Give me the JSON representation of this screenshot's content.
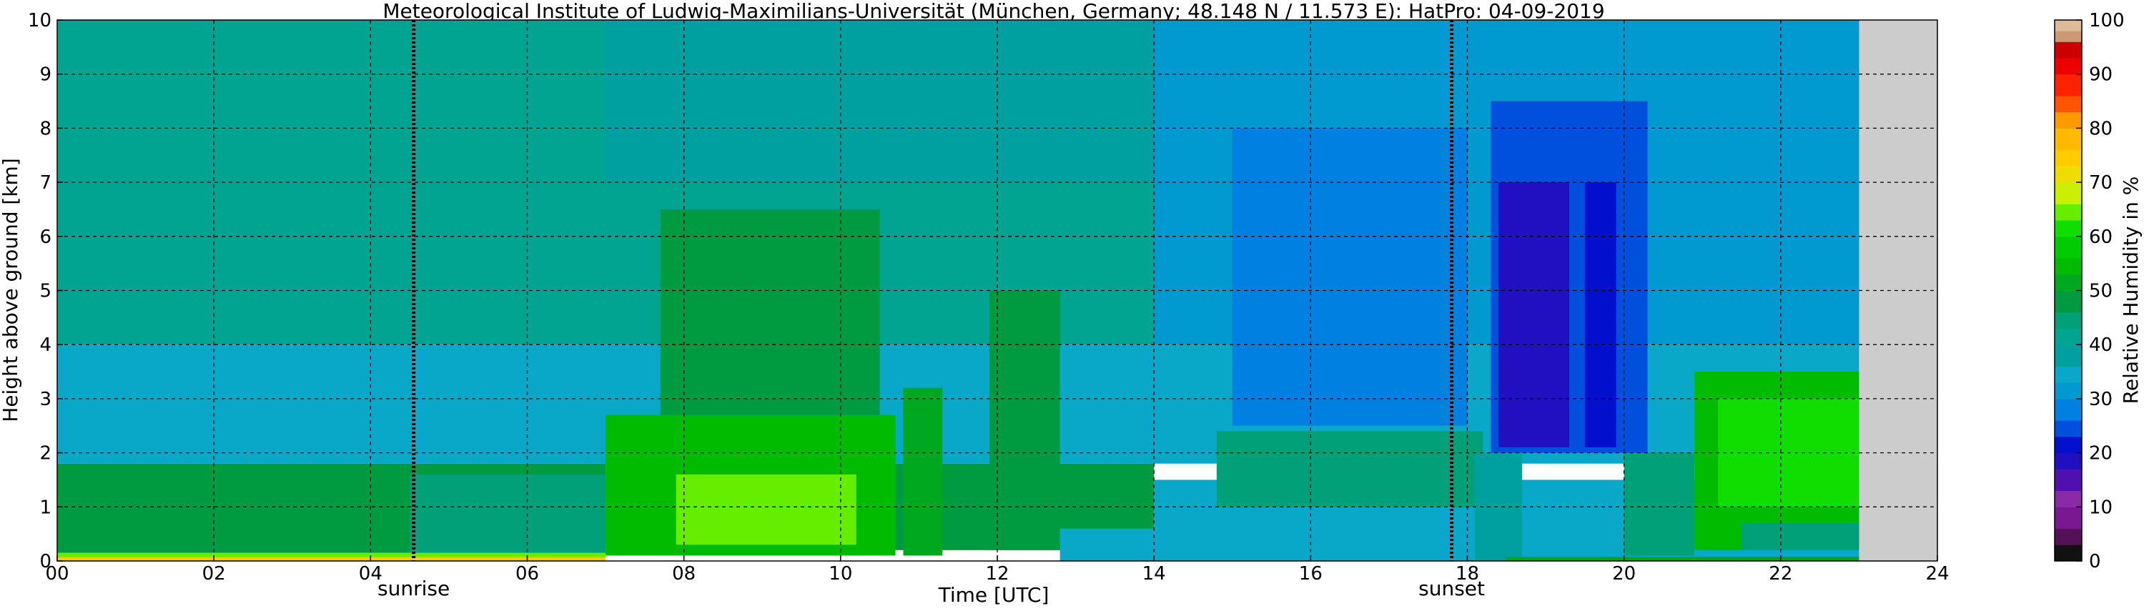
{
  "chart_data": {
    "type": "heatmap",
    "title": "Meteorological Institute of Ludwig-Maximilians-Universität (München, Germany; 48.148 N / 11.573 E):    HatPro: 04-09-2019",
    "xlabel": "Time [UTC]",
    "ylabel": "Height above ground [km]",
    "xlim": [
      0,
      24
    ],
    "ylim": [
      0,
      10
    ],
    "x_ticks": [
      "00",
      "02",
      "04",
      "06",
      "08",
      "10",
      "12",
      "14",
      "16",
      "18",
      "20",
      "22",
      "24"
    ],
    "y_ticks": [
      "0",
      "1",
      "2",
      "3",
      "4",
      "5",
      "6",
      "7",
      "8",
      "9",
      "10"
    ],
    "grid": true,
    "data_end_time": 23.0,
    "missing_color": "#cccccc",
    "events": [
      {
        "label": "sunrise",
        "time": 4.55
      },
      {
        "label": "sunset",
        "time": 17.8
      }
    ],
    "colorbar": {
      "label": "Relative Humidity in %",
      "range": [
        0,
        100
      ],
      "ticks": [
        "0",
        "10",
        "20",
        "30",
        "40",
        "50",
        "60",
        "70",
        "80",
        "90",
        "100"
      ],
      "levels": [
        {
          "from": 0,
          "to": 3,
          "color": "#111111"
        },
        {
          "from": 3,
          "to": 6,
          "color": "#551155"
        },
        {
          "from": 6,
          "to": 10,
          "color": "#7a1890"
        },
        {
          "from": 10,
          "to": 13,
          "color": "#8a2aa6"
        },
        {
          "from": 13,
          "to": 17,
          "color": "#5010b0"
        },
        {
          "from": 17,
          "to": 20,
          "color": "#2010c0"
        },
        {
          "from": 20,
          "to": 23,
          "color": "#0010cc"
        },
        {
          "from": 23,
          "to": 26,
          "color": "#0050dd"
        },
        {
          "from": 26,
          "to": 30,
          "color": "#0080e0"
        },
        {
          "from": 30,
          "to": 33,
          "color": "#0099d0"
        },
        {
          "from": 33,
          "to": 36,
          "color": "#0aa8c8"
        },
        {
          "from": 36,
          "to": 40,
          "color": "#00a0a0"
        },
        {
          "from": 40,
          "to": 43,
          "color": "#00a490"
        },
        {
          "from": 43,
          "to": 46,
          "color": "#00a078"
        },
        {
          "from": 46,
          "to": 50,
          "color": "#009a40"
        },
        {
          "from": 50,
          "to": 53,
          "color": "#00a820"
        },
        {
          "from": 53,
          "to": 56,
          "color": "#00bb00"
        },
        {
          "from": 56,
          "to": 60,
          "color": "#00cc00"
        },
        {
          "from": 60,
          "to": 63,
          "color": "#10dd00"
        },
        {
          "from": 63,
          "to": 66,
          "color": "#66ee00"
        },
        {
          "from": 66,
          "to": 70,
          "color": "#ccee00"
        },
        {
          "from": 70,
          "to": 73,
          "color": "#eedd00"
        },
        {
          "from": 73,
          "to": 76,
          "color": "#ffcc00"
        },
        {
          "from": 76,
          "to": 80,
          "color": "#ffbb00"
        },
        {
          "from": 80,
          "to": 83,
          "color": "#ff9900"
        },
        {
          "from": 83,
          "to": 86,
          "color": "#ff5500"
        },
        {
          "from": 86,
          "to": 90,
          "color": "#ff2200"
        },
        {
          "from": 90,
          "to": 93,
          "color": "#ee0000"
        },
        {
          "from": 93,
          "to": 96,
          "color": "#cc0000"
        },
        {
          "from": 96,
          "to": 98,
          "color": "#cc9977"
        },
        {
          "from": 98,
          "to": 100,
          "color": "#ddbb99"
        }
      ]
    },
    "humidity_regions": [
      {
        "t0": 0.0,
        "t1": 23.0,
        "h0": 4.0,
        "h1": 10.0,
        "rh": 42
      },
      {
        "t0": 7.0,
        "t1": 14.0,
        "h0": 7.0,
        "h1": 10.0,
        "rh": 38
      },
      {
        "t0": 14.0,
        "t1": 23.0,
        "h0": 4.0,
        "h1": 10.0,
        "rh": 30
      },
      {
        "t0": 0.0,
        "t1": 23.0,
        "h0": 1.8,
        "h1": 4.0,
        "rh": 34
      },
      {
        "t0": 15.0,
        "t1": 18.0,
        "h0": 2.5,
        "h1": 8.0,
        "rh": 26
      },
      {
        "t0": 18.3,
        "t1": 20.3,
        "h0": 2.0,
        "h1": 8.5,
        "rh": 25
      },
      {
        "t0": 0.0,
        "t1": 7.0,
        "h0": 0.15,
        "h1": 1.8,
        "rh": 48
      },
      {
        "t0": 4.5,
        "t1": 7.0,
        "h0": 0.15,
        "h1": 1.6,
        "rh": 45
      },
      {
        "t0": 7.0,
        "t1": 10.7,
        "h0": 0.1,
        "h1": 2.7,
        "rh": 55
      },
      {
        "t0": 7.7,
        "t1": 10.5,
        "h0": 2.7,
        "h1": 6.5,
        "rh": 48
      },
      {
        "t0": 7.9,
        "t1": 10.2,
        "h0": 0.3,
        "h1": 1.6,
        "rh": 64
      },
      {
        "t0": 10.7,
        "t1": 14.0,
        "h0": 0.2,
        "h1": 1.8,
        "rh": 47
      },
      {
        "t0": 10.8,
        "t1": 11.3,
        "h0": 0.1,
        "h1": 3.2,
        "rh": 50
      },
      {
        "t0": 11.9,
        "t1": 12.8,
        "h0": 0.2,
        "h1": 5.0,
        "rh": 47
      },
      {
        "t0": 12.8,
        "t1": 14.0,
        "h0": 0.0,
        "h1": 0.6,
        "rh": 34
      },
      {
        "t0": 14.0,
        "t1": 23.0,
        "h0": 0.0,
        "h1": 1.5,
        "rh": 34
      },
      {
        "t0": 14.8,
        "t1": 18.2,
        "h0": 1.0,
        "h1": 2.4,
        "rh": 44
      },
      {
        "t0": 18.4,
        "t1": 19.3,
        "h0": 2.1,
        "h1": 7.0,
        "rh": 19
      },
      {
        "t0": 19.5,
        "t1": 19.9,
        "h0": 2.1,
        "h1": 7.0,
        "rh": 20
      },
      {
        "t0": 18.1,
        "t1": 18.7,
        "h0": 0.0,
        "h1": 2.0,
        "rh": 38
      },
      {
        "t0": 20.0,
        "t1": 20.9,
        "h0": 0.1,
        "h1": 2.0,
        "rh": 45
      },
      {
        "t0": 20.9,
        "t1": 23.0,
        "h0": 0.2,
        "h1": 3.5,
        "rh": 55
      },
      {
        "t0": 21.2,
        "t1": 23.0,
        "h0": 1.0,
        "h1": 3.0,
        "rh": 62
      },
      {
        "t0": 21.5,
        "t1": 23.0,
        "h0": 0.2,
        "h1": 0.7,
        "rh": 45
      },
      {
        "t0": 0.0,
        "t1": 7.0,
        "h0": 0.0,
        "h1": 0.15,
        "rh": 64
      },
      {
        "t0": 0.0,
        "t1": 7.0,
        "h0": 0.0,
        "h1": 0.07,
        "rh": 74
      },
      {
        "t0": 18.5,
        "t1": 23.0,
        "h0": 0.0,
        "h1": 0.08,
        "rh": 50
      }
    ]
  }
}
